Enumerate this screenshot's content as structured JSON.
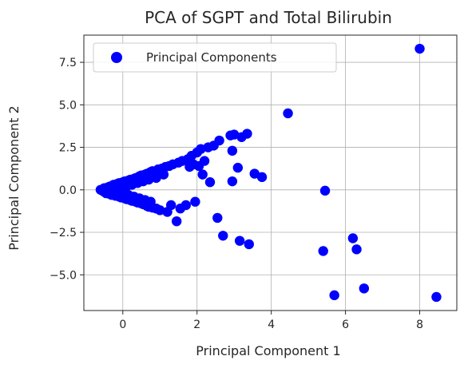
{
  "chart_data": {
    "type": "scatter",
    "title": "PCA of SGPT and Total Bilirubin",
    "xlabel": "Principal Component 1",
    "ylabel": "Principal Component 2",
    "xlim": [
      -1.05,
      9.0
    ],
    "ylim": [
      -7.1,
      9.1
    ],
    "xticks": [
      0,
      2,
      4,
      6,
      8
    ],
    "xtick_labels": [
      "0",
      "2",
      "4",
      "6",
      "8"
    ],
    "yticks": [
      -5.0,
      -2.5,
      0.0,
      2.5,
      5.0,
      7.5
    ],
    "ytick_labels": [
      "−5.0",
      "−2.5",
      "0.0",
      "2.5",
      "5.0",
      "7.5"
    ],
    "grid": true,
    "legend_position": "upper-left",
    "series": [
      {
        "name": "Principal Components",
        "color": "#0000ff",
        "points": [
          [
            -0.6,
            0.0
          ],
          [
            -0.55,
            -0.05
          ],
          [
            -0.5,
            0.1
          ],
          [
            -0.5,
            -0.12
          ],
          [
            -0.45,
            0.05
          ],
          [
            -0.45,
            -0.2
          ],
          [
            -0.4,
            0.15
          ],
          [
            -0.4,
            -0.1
          ],
          [
            -0.35,
            0.2
          ],
          [
            -0.35,
            -0.25
          ],
          [
            -0.3,
            0.08
          ],
          [
            -0.3,
            -0.3
          ],
          [
            -0.25,
            0.3
          ],
          [
            -0.25,
            -0.05
          ],
          [
            -0.2,
            0.25
          ],
          [
            -0.2,
            -0.35
          ],
          [
            -0.15,
            0.35
          ],
          [
            -0.15,
            -0.15
          ],
          [
            -0.1,
            0.4
          ],
          [
            -0.1,
            -0.4
          ],
          [
            -0.05,
            0.1
          ],
          [
            -0.05,
            -0.45
          ],
          [
            0.0,
            0.45
          ],
          [
            0.0,
            -0.2
          ],
          [
            0.05,
            0.5
          ],
          [
            0.05,
            -0.5
          ],
          [
            0.1,
            0.2
          ],
          [
            0.1,
            -0.55
          ],
          [
            0.15,
            0.55
          ],
          [
            0.15,
            -0.3
          ],
          [
            0.2,
            0.6
          ],
          [
            0.2,
            -0.6
          ],
          [
            0.25,
            0.3
          ],
          [
            0.25,
            -0.65
          ],
          [
            0.3,
            0.65
          ],
          [
            0.3,
            -0.4
          ],
          [
            0.35,
            0.7
          ],
          [
            0.35,
            -0.7
          ],
          [
            0.4,
            0.4
          ],
          [
            0.4,
            -0.75
          ],
          [
            0.45,
            0.8
          ],
          [
            0.45,
            -0.5
          ],
          [
            0.5,
            0.85
          ],
          [
            0.5,
            -0.8
          ],
          [
            0.55,
            0.5
          ],
          [
            0.55,
            -0.85
          ],
          [
            0.6,
            0.9
          ],
          [
            0.6,
            -0.6
          ],
          [
            0.65,
            0.95
          ],
          [
            0.65,
            -0.95
          ],
          [
            0.7,
            0.6
          ],
          [
            0.7,
            -1.0
          ],
          [
            0.75,
            1.05
          ],
          [
            0.75,
            -0.7
          ],
          [
            0.8,
            1.1
          ],
          [
            0.8,
            -1.05
          ],
          [
            0.9,
            0.7
          ],
          [
            0.9,
            -1.1
          ],
          [
            0.95,
            1.2
          ],
          [
            1.0,
            -1.2
          ],
          [
            1.05,
            1.25
          ],
          [
            1.1,
            0.9
          ],
          [
            1.15,
            1.35
          ],
          [
            1.2,
            -1.3
          ],
          [
            1.25,
            1.4
          ],
          [
            1.3,
            -0.9
          ],
          [
            1.35,
            1.5
          ],
          [
            1.45,
            -1.85
          ],
          [
            1.5,
            1.6
          ],
          [
            1.55,
            -1.1
          ],
          [
            1.6,
            1.7
          ],
          [
            1.7,
            -0.9
          ],
          [
            1.75,
            1.8
          ],
          [
            1.8,
            1.35
          ],
          [
            1.85,
            2.0
          ],
          [
            1.9,
            1.5
          ],
          [
            1.95,
            -0.7
          ],
          [
            2.0,
            2.2
          ],
          [
            2.05,
            1.4
          ],
          [
            2.1,
            2.4
          ],
          [
            2.15,
            0.9
          ],
          [
            2.2,
            1.7
          ],
          [
            2.3,
            2.5
          ],
          [
            2.35,
            0.45
          ],
          [
            2.45,
            2.6
          ],
          [
            2.6,
            2.9
          ],
          [
            2.55,
            -1.65
          ],
          [
            2.7,
            -2.7
          ],
          [
            2.9,
            3.2
          ],
          [
            3.0,
            3.25
          ],
          [
            3.2,
            3.1
          ],
          [
            3.35,
            3.3
          ],
          [
            2.95,
            2.3
          ],
          [
            3.1,
            1.3
          ],
          [
            2.95,
            0.5
          ],
          [
            3.15,
            -3.0
          ],
          [
            3.4,
            -3.2
          ],
          [
            3.55,
            0.95
          ],
          [
            3.75,
            0.75
          ],
          [
            4.45,
            4.5
          ],
          [
            5.45,
            -0.05
          ],
          [
            5.4,
            -3.6
          ],
          [
            5.7,
            -6.2
          ],
          [
            6.2,
            -2.85
          ],
          [
            6.3,
            -3.5
          ],
          [
            6.5,
            -5.8
          ],
          [
            8.0,
            8.3
          ],
          [
            8.45,
            -6.3
          ]
        ]
      }
    ]
  }
}
